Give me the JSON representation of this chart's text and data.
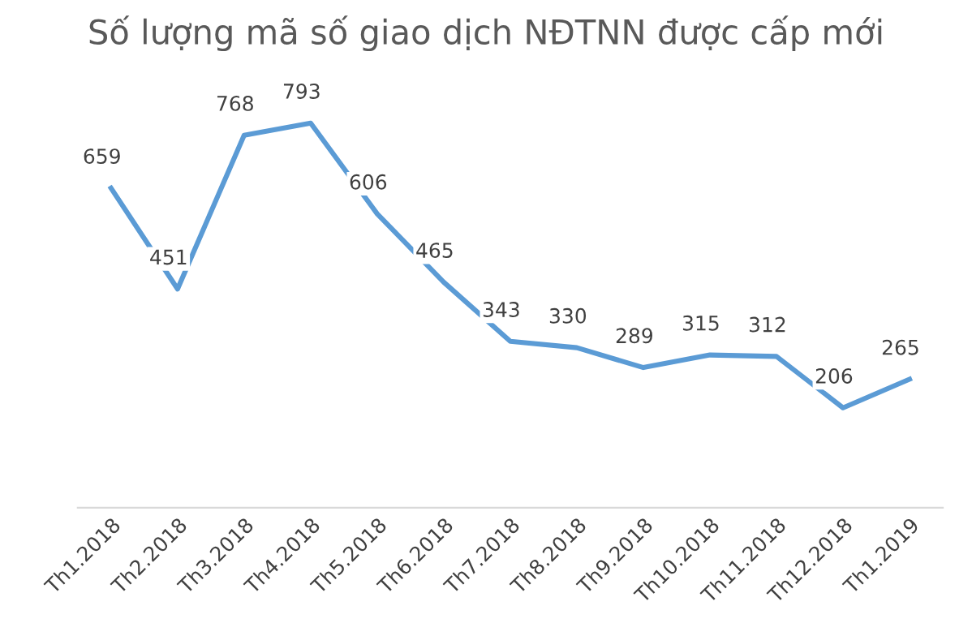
{
  "chart_data": {
    "type": "line",
    "title": "Số lượng mã số giao dịch NĐTNN được cấp mới",
    "categories": [
      "Th1.2018",
      "Th2.2018",
      "Th3.2018",
      "Th4.2018",
      "Th5.2018",
      "Th6.2018",
      "Th7.2018",
      "Th8.2018",
      "Th9.2018",
      "Th10.2018",
      "Th11.2018",
      "Th12.2018",
      "Th1.2019"
    ],
    "series": [
      {
        "color": "#5b9bd5",
        "values": [
          659,
          451,
          768,
          793,
          606,
          465,
          343,
          330,
          289,
          315,
          312,
          206,
          265
        ]
      }
    ],
    "data_labels": true,
    "legend": false,
    "marker": "none",
    "line_style": "solid",
    "tick_labels": "x"
  }
}
